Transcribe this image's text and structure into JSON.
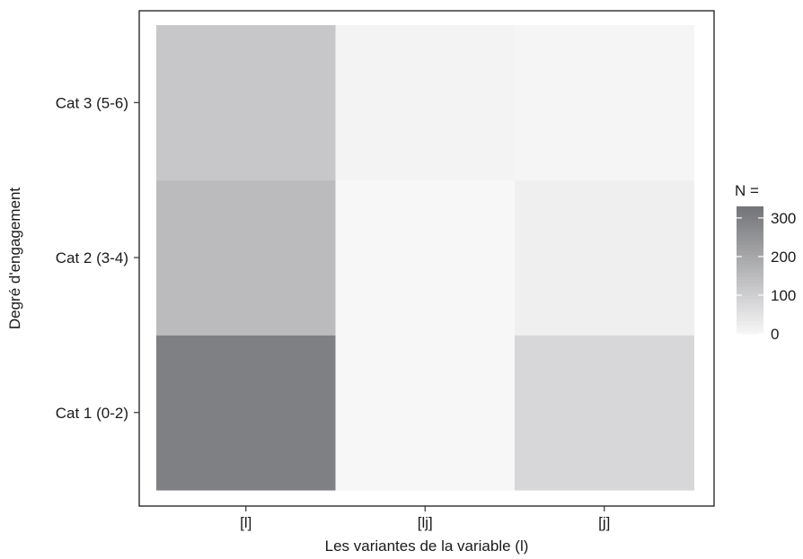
{
  "chart_data": {
    "type": "heatmap",
    "title": "",
    "xlabel": "Les variantes de la variable (l)",
    "ylabel": "Degré d'engagement",
    "x_categories": [
      "[l]",
      "[lj]",
      "[j]"
    ],
    "y_categories": [
      "Cat 1 (0-2)",
      "Cat 2 (3-4)",
      "Cat 3 (5-6)"
    ],
    "cells": [
      {
        "x": "[l]",
        "y": "Cat 1 (0-2)",
        "value": 300
      },
      {
        "x": "[l]",
        "y": "Cat 2 (3-4)",
        "value": 150
      },
      {
        "x": "[l]",
        "y": "Cat 3 (5-6)",
        "value": 120
      },
      {
        "x": "[lj]",
        "y": "Cat 1 (0-2)",
        "value": 0
      },
      {
        "x": "[lj]",
        "y": "Cat 2 (3-4)",
        "value": 0
      },
      {
        "x": "[lj]",
        "y": "Cat 3 (5-6)",
        "value": 10
      },
      {
        "x": "[j]",
        "y": "Cat 1 (0-2)",
        "value": 80
      },
      {
        "x": "[j]",
        "y": "Cat 2 (3-4)",
        "value": 20
      },
      {
        "x": "[j]",
        "y": "Cat 3 (5-6)",
        "value": 5
      }
    ],
    "legend": {
      "title": "N =",
      "placement": "right",
      "ticks": [
        0,
        100,
        200,
        300
      ],
      "range": [
        0,
        330
      ]
    },
    "colors": {
      "low": "#f7f7f8",
      "high": "#737477"
    },
    "grid": false
  }
}
